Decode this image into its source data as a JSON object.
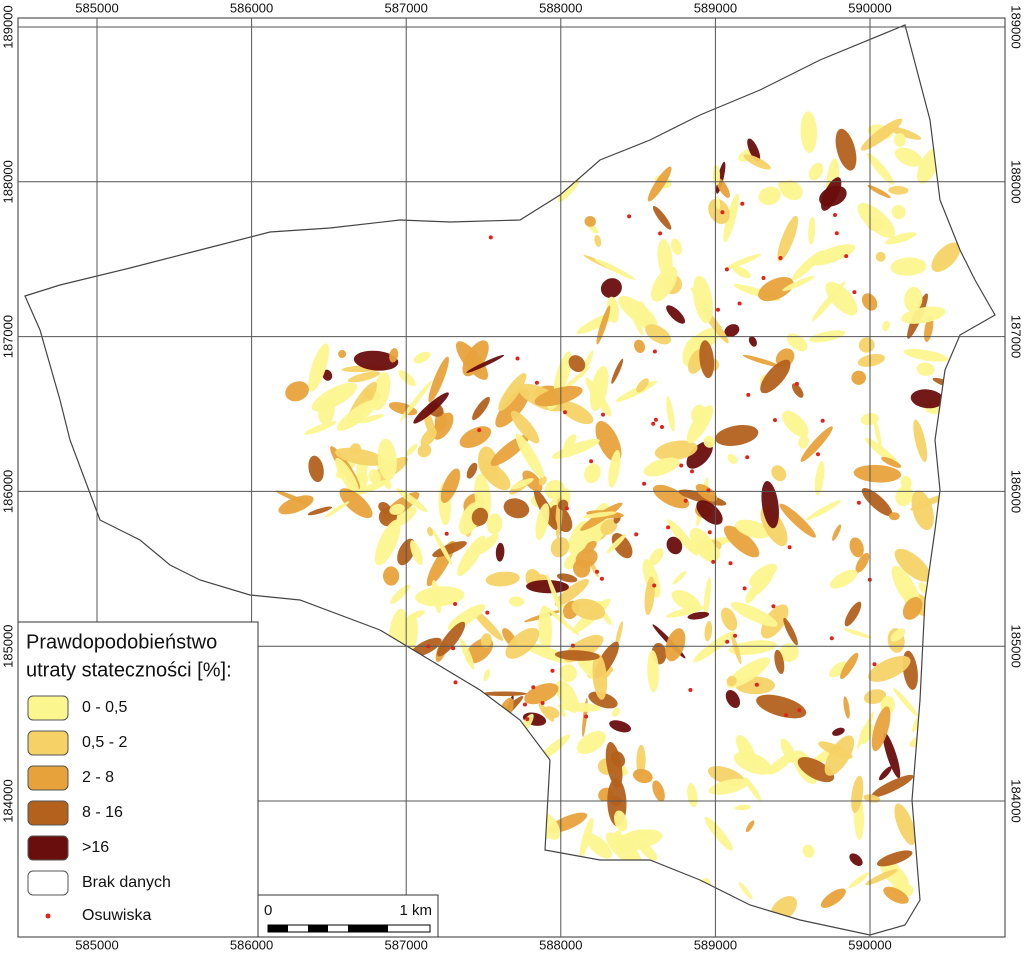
{
  "map": {
    "x_labels": [
      585000,
      586000,
      587000,
      588000,
      589000,
      590000
    ],
    "y_labels": [
      189000,
      188000,
      187000,
      186000,
      185000,
      184000
    ],
    "legend": {
      "title": [
        "Prawdopodobieństwo",
        "utraty stateczności [%]:"
      ],
      "items": [
        {
          "label": "0 - 0,5",
          "color": "#fcf68f"
        },
        {
          "label": "0,5 - 2",
          "color": "#f6d266"
        },
        {
          "label": "2 - 8",
          "color": "#e8a23c"
        },
        {
          "label": "8 - 16",
          "color": "#b3611d"
        },
        {
          "label": ">16",
          "color": "#6a0d0d"
        },
        {
          "label": "Brak danych",
          "color": "#ffffff"
        }
      ],
      "points": {
        "label": "Osuwiska",
        "color": "#e3211b"
      }
    },
    "scale_bar": {
      "start": 0,
      "end": "1 km"
    }
  }
}
